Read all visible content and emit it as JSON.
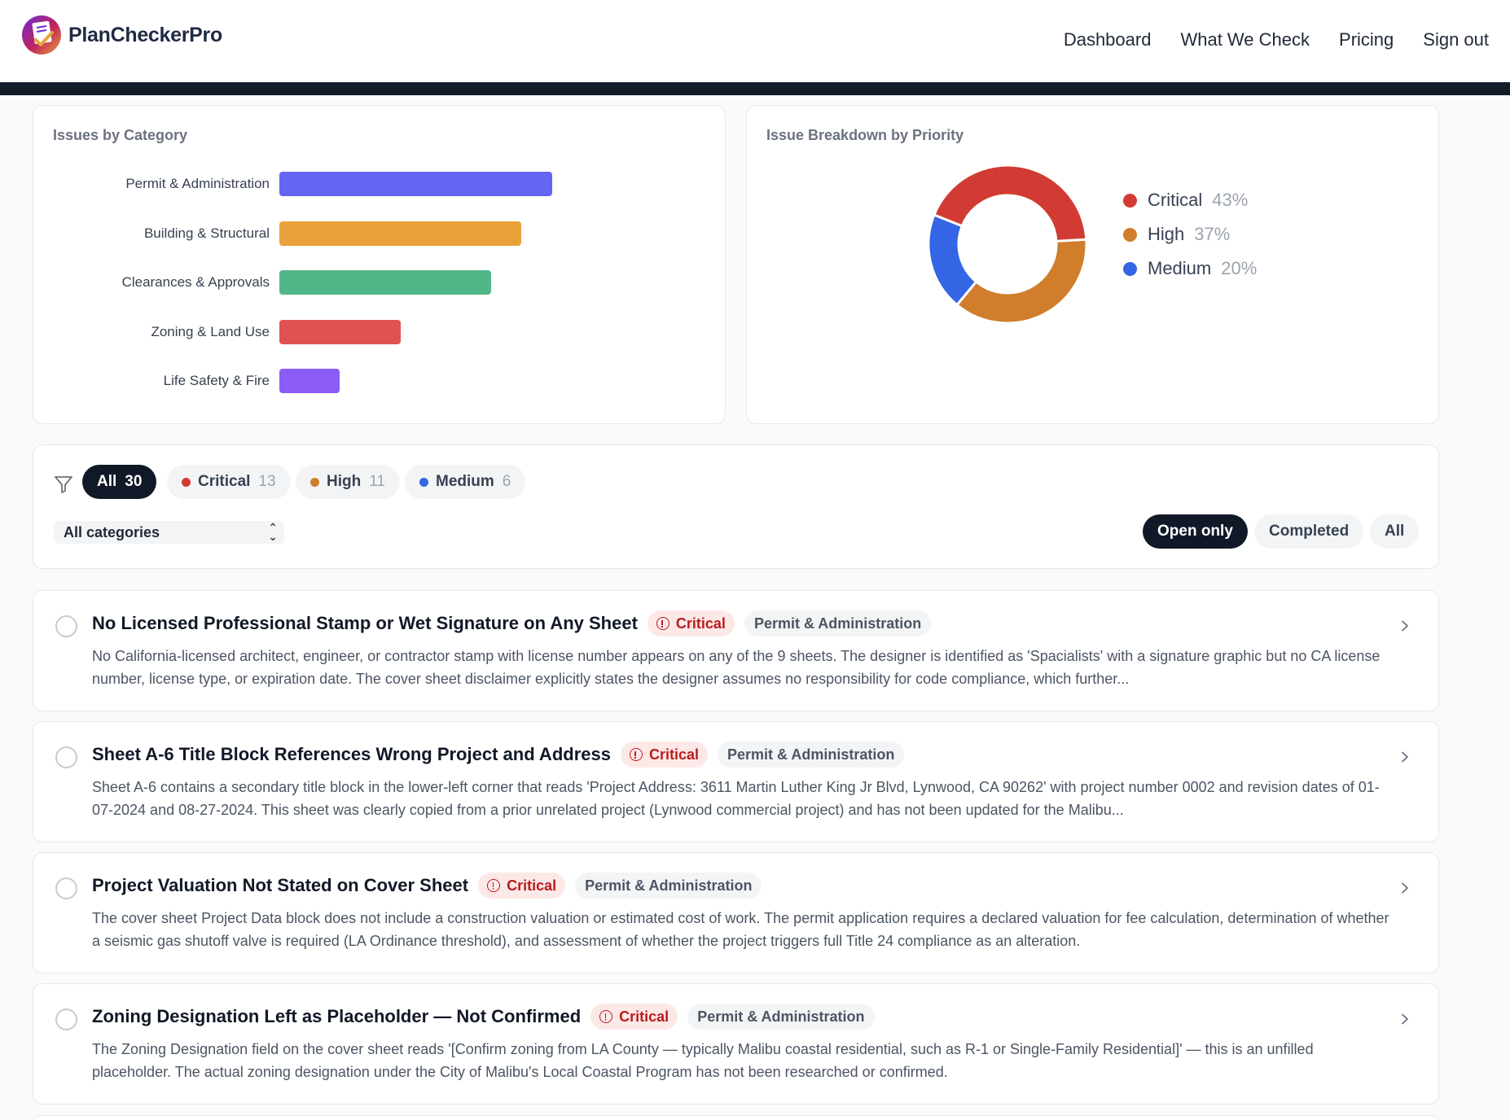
{
  "app": {
    "logo_text": "PlanCheckerPro"
  },
  "nav": [
    {
      "label": "Dashboard"
    },
    {
      "label": "What We Check"
    },
    {
      "label": "Pricing"
    },
    {
      "label": "Sign out"
    }
  ],
  "category_chart": {
    "title": "Issues by Category"
  },
  "priority_chart": {
    "title": "Issue Breakdown by Priority"
  },
  "chart_data": [
    {
      "type": "bar",
      "orientation": "horizontal",
      "title": "Issues by Category",
      "categories": [
        "Permit & Administration",
        "Building & Structural",
        "Clearances & Approvals",
        "Zoning & Land Use",
        "Life Safety & Fire"
      ],
      "values": [
        9,
        8,
        7,
        4,
        2
      ],
      "colors": [
        "#6366f1",
        "#e9a23b",
        "#52b788",
        "#e05252",
        "#8b5cf6"
      ],
      "grid": false,
      "legend": "none"
    },
    {
      "type": "pie",
      "variant": "donut",
      "title": "Issue Breakdown by Priority",
      "labels": [
        "Critical",
        "High",
        "Medium"
      ],
      "values": [
        43,
        37,
        20
      ],
      "value_labels": [
        "43%",
        "37%",
        "20%"
      ],
      "colors": [
        "#d23b33",
        "#d07d2c",
        "#3465e4"
      ],
      "legend": "right"
    }
  ],
  "filters": {
    "filter_icon": "filter-icon",
    "priority_pills": [
      {
        "label": "All",
        "count": "30",
        "active": true
      },
      {
        "label": "Critical",
        "count": "13",
        "dot": "#d23b33"
      },
      {
        "label": "High",
        "count": "11",
        "dot": "#d07d2c"
      },
      {
        "label": "Medium",
        "count": "6",
        "dot": "#3465e4"
      }
    ],
    "category_select": "All categories",
    "status_pills": [
      {
        "label": "Open only",
        "active": true
      },
      {
        "label": "Completed"
      },
      {
        "label": "All"
      }
    ]
  },
  "issues": [
    {
      "title": "No Licensed Professional Stamp or Wet Signature on Any Sheet",
      "priority": "Critical",
      "category": "Permit & Administration",
      "description": "No California-licensed architect, engineer, or contractor stamp with license number appears on any of the 9 sheets. The designer is identified as 'Spacialists' with a signature graphic but no CA license number, license type, or expiration date. The cover sheet disclaimer explicitly states the designer assumes no responsibility for code compliance, which further..."
    },
    {
      "title": "Sheet A-6 Title Block References Wrong Project and Address",
      "priority": "Critical",
      "category": "Permit & Administration",
      "description": "Sheet A-6 contains a secondary title block in the lower-left corner that reads 'Project Address: 3611 Martin Luther King Jr Blvd, Lynwood, CA 90262' with project number 0002 and revision dates of 01-07-2024 and 08-27-2024. This sheet was clearly copied from a prior unrelated project (Lynwood commercial project) and has not been updated for the Malibu..."
    },
    {
      "title": "Project Valuation Not Stated on Cover Sheet",
      "priority": "Critical",
      "category": "Permit & Administration",
      "description": "The cover sheet Project Data block does not include a construction valuation or estimated cost of work. The permit application requires a declared valuation for fee calculation, determination of whether a seismic gas shutoff valve is required (LA Ordinance threshold), and assessment of whether the project triggers full Title 24 compliance as an alteration."
    },
    {
      "title": "Zoning Designation Left as Placeholder — Not Confirmed",
      "priority": "Critical",
      "category": "Permit & Administration",
      "description": "The Zoning Designation field on the cover sheet reads '[Confirm zoning from LA County — typically Malibu coastal residential, such as R-1 or Single-Family Residential]' — this is an unfilled placeholder. The actual zoning designation under the City of Malibu's Local Coastal Program has not been researched or confirmed."
    }
  ]
}
